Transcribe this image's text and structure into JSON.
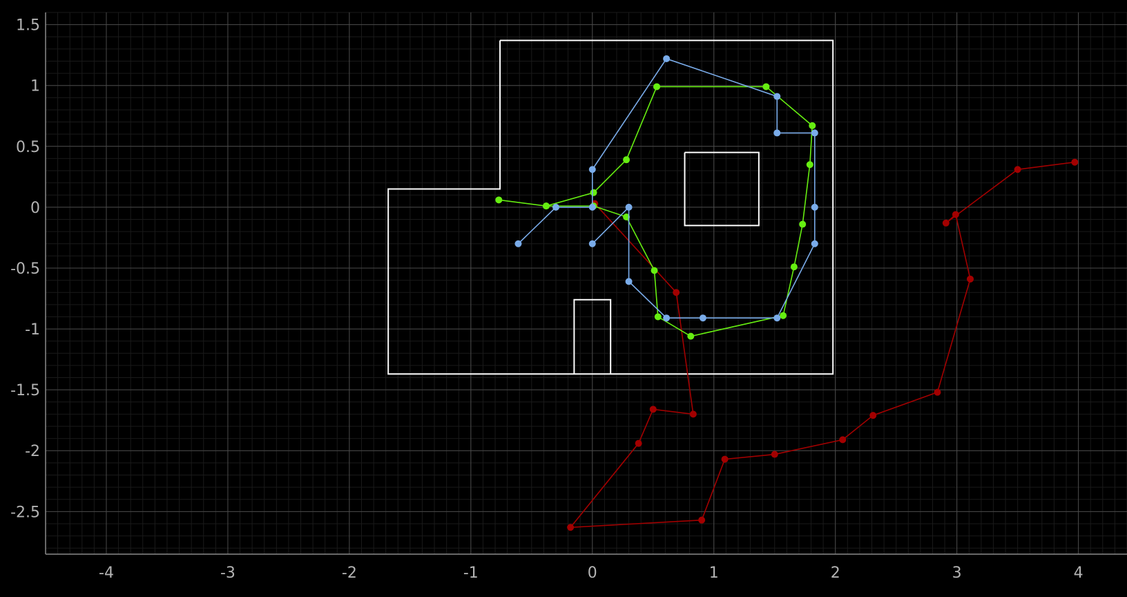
{
  "chart_data": {
    "type": "line",
    "xlim": [
      -4.5,
      4.4
    ],
    "ylim": [
      -2.85,
      1.6
    ],
    "x_ticks": [
      -4,
      -3,
      -2,
      -1,
      0,
      1,
      2,
      3,
      4
    ],
    "y_ticks": [
      1.5,
      1,
      0.5,
      0,
      -0.5,
      -1,
      -1.5,
      -2,
      -2.5
    ],
    "x_tick_labels": [
      "-4",
      "-3",
      "-2",
      "-1",
      "0",
      "1",
      "2",
      "3",
      "4"
    ],
    "y_tick_labels": [
      "1.5",
      "1",
      "0.5",
      "0",
      "-0.5",
      "-1",
      "-1.5",
      "-2",
      "-2.5"
    ],
    "grid": true,
    "minor_grid_step": 0.1,
    "map_outlines": [
      {
        "color": "#ffffff",
        "points": [
          [
            -0.76,
            1.37
          ],
          [
            1.98,
            1.37
          ],
          [
            1.98,
            -1.37
          ],
          [
            -1.68,
            -1.37
          ],
          [
            -1.68,
            0.15
          ],
          [
            -0.76,
            0.15
          ],
          [
            -0.76,
            1.37
          ]
        ]
      },
      {
        "color": "#ffffff",
        "points": [
          [
            0.76,
            0.45
          ],
          [
            1.37,
            0.45
          ],
          [
            1.37,
            -0.15
          ],
          [
            0.76,
            -0.15
          ],
          [
            0.76,
            0.45
          ]
        ]
      },
      {
        "color": "#ffffff",
        "points": [
          [
            -0.15,
            -1.37
          ],
          [
            -0.15,
            -0.76
          ],
          [
            0.15,
            -0.76
          ],
          [
            0.15,
            -1.37
          ]
        ]
      }
    ],
    "series": [
      {
        "color": "#a30000",
        "points": [
          [
            0.02,
            0.03
          ],
          [
            0.69,
            -0.7
          ],
          [
            0.83,
            -1.7
          ],
          [
            0.5,
            -1.66
          ],
          [
            0.38,
            -1.94
          ],
          [
            -0.18,
            -2.63
          ],
          [
            0.9,
            -2.57
          ],
          [
            1.09,
            -2.07
          ],
          [
            1.5,
            -2.03
          ],
          [
            2.06,
            -1.91
          ],
          [
            2.31,
            -1.71
          ],
          [
            2.84,
            -1.52
          ],
          [
            3.11,
            -0.59
          ],
          [
            2.99,
            -0.06
          ],
          [
            2.91,
            -0.13
          ],
          [
            3.5,
            0.31
          ],
          [
            3.97,
            0.37
          ]
        ]
      },
      {
        "color": "#66ee11",
        "points": [
          [
            -0.77,
            0.06
          ],
          [
            -0.38,
            0.01
          ],
          [
            0.01,
            0.12
          ],
          [
            0.28,
            0.39
          ],
          [
            0.53,
            0.99
          ],
          [
            1.43,
            0.99
          ],
          [
            1.81,
            0.67
          ],
          [
            1.79,
            0.35
          ],
          [
            1.73,
            -0.14
          ],
          [
            1.66,
            -0.49
          ],
          [
            1.57,
            -0.89
          ],
          [
            0.81,
            -1.06
          ],
          [
            0.54,
            -0.9
          ],
          [
            0.51,
            -0.52
          ],
          [
            0.28,
            -0.08
          ],
          [
            0.01,
            0.01
          ],
          [
            -0.38,
            0.01
          ]
        ]
      },
      {
        "color": "#7aacea",
        "points": [
          [
            -0.61,
            -0.3
          ],
          [
            -0.3,
            0.0
          ],
          [
            0.0,
            0.0
          ],
          [
            0.0,
            0.31
          ],
          [
            0.61,
            1.22
          ],
          [
            1.52,
            0.91
          ],
          [
            1.52,
            0.61
          ],
          [
            1.83,
            0.61
          ],
          [
            1.83,
            0.0
          ],
          [
            1.83,
            -0.3
          ],
          [
            1.52,
            -0.91
          ],
          [
            0.91,
            -0.91
          ],
          [
            0.61,
            -0.91
          ],
          [
            0.3,
            -0.61
          ],
          [
            0.3,
            0.0
          ],
          [
            0.0,
            -0.3
          ]
        ]
      }
    ]
  }
}
